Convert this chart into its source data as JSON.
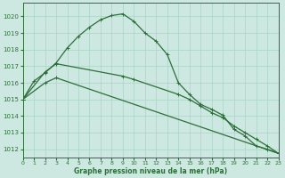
{
  "title": "Graphe pression niveau de la mer (hPa)",
  "background_color": "#cce8e0",
  "grid_color": "#aad4c8",
  "line_color": "#2d6e3a",
  "xlim": [
    0,
    23
  ],
  "ylim": [
    1011.5,
    1020.8
  ],
  "yticks": [
    1012,
    1013,
    1014,
    1015,
    1016,
    1017,
    1018,
    1019,
    1020
  ],
  "xticks": [
    0,
    1,
    2,
    3,
    4,
    5,
    6,
    7,
    8,
    9,
    10,
    11,
    12,
    13,
    14,
    15,
    16,
    17,
    18,
    19,
    20,
    21,
    22,
    23
  ],
  "series1_x": [
    0,
    1,
    2,
    3,
    4,
    5,
    6,
    7,
    8,
    9,
    10,
    11,
    12,
    13,
    14,
    15,
    16,
    17,
    18,
    19,
    20,
    21,
    22,
    23
  ],
  "series1_y": [
    1015.0,
    1016.1,
    1016.6,
    1017.2,
    1018.1,
    1018.8,
    1019.35,
    1019.8,
    1020.05,
    1020.15,
    1019.7,
    1019.0,
    1018.5,
    1017.7,
    1016.0,
    1015.3,
    1014.7,
    1014.4,
    1014.05,
    1013.2,
    1012.8,
    1012.2,
    1012.0,
    1011.75
  ],
  "series2_x": [
    0,
    2,
    3,
    9,
    10,
    14,
    15,
    16,
    17,
    18,
    19,
    20,
    21,
    22,
    23
  ],
  "series2_y": [
    1015.0,
    1016.65,
    1017.15,
    1016.4,
    1016.2,
    1015.3,
    1015.0,
    1014.6,
    1014.2,
    1013.9,
    1013.4,
    1013.0,
    1012.6,
    1012.2,
    1011.75
  ],
  "series3_x": [
    0,
    2,
    3,
    23
  ],
  "series3_y": [
    1015.0,
    1016.0,
    1016.3,
    1011.75
  ]
}
